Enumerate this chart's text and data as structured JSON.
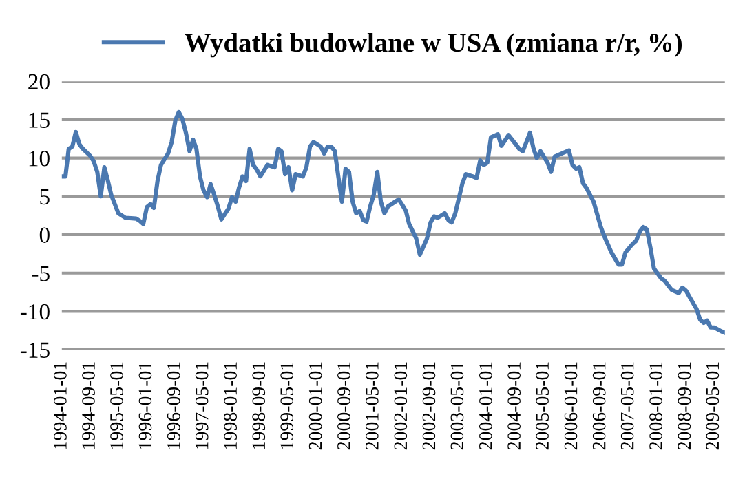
{
  "chart_data": {
    "type": "line",
    "x": [
      "1994-01",
      "1994-02",
      "1994-03",
      "1994-04",
      "1994-05",
      "1994-06",
      "1994-07",
      "1994-09",
      "1994-10",
      "1994-11",
      "1994-12",
      "1995-01",
      "1995-02",
      "1995-03",
      "1995-05",
      "1995-07",
      "1995-10",
      "1995-11",
      "1995-12",
      "1996-01",
      "1996-02",
      "1996-03",
      "1996-04",
      "1996-05",
      "1996-07",
      "1996-08",
      "1996-09",
      "1996-10",
      "1996-11",
      "1996-12",
      "1997-01",
      "1997-02",
      "1997-03",
      "1997-04",
      "1997-05",
      "1997-06",
      "1997-07",
      "1997-08",
      "1997-09",
      "1997-10",
      "1997-12",
      "1998-01",
      "1998-02",
      "1998-03",
      "1998-04",
      "1998-05",
      "1998-06",
      "1998-07",
      "1998-08",
      "1998-09",
      "1998-11",
      "1999-01",
      "1999-02",
      "1999-03",
      "1999-04",
      "1999-05",
      "1999-06",
      "1999-07",
      "1999-09",
      "1999-10",
      "1999-11",
      "1999-12",
      "2000-02",
      "2000-03",
      "2000-04",
      "2000-05",
      "2000-06",
      "2000-07",
      "2000-08",
      "2000-09",
      "2000-10",
      "2000-11",
      "2000-12",
      "2001-01",
      "2001-02",
      "2001-03",
      "2001-04",
      "2001-05",
      "2001-06",
      "2001-07",
      "2001-08",
      "2001-09",
      "2001-11",
      "2001-12",
      "2002-01",
      "2002-02",
      "2002-03",
      "2002-05",
      "2002-06",
      "2002-08",
      "2002-09",
      "2002-10",
      "2002-11",
      "2003-01",
      "2003-02",
      "2003-03",
      "2003-04",
      "2003-06",
      "2003-07",
      "2003-09",
      "2003-10",
      "2003-11",
      "2003-12",
      "2004-01",
      "2004-02",
      "2004-04",
      "2004-05",
      "2004-07",
      "2004-09",
      "2004-10",
      "2004-11",
      "2005-01",
      "2005-02",
      "2005-03",
      "2005-04",
      "2005-06",
      "2005-07",
      "2005-08",
      "2005-10",
      "2005-12",
      "2006-01",
      "2006-02",
      "2006-03",
      "2006-04",
      "2006-05",
      "2006-07",
      "2006-09",
      "2006-10",
      "2006-12",
      "2007-02",
      "2007-03",
      "2007-04",
      "2007-06",
      "2007-07",
      "2007-08",
      "2007-09",
      "2007-10",
      "2007-11",
      "2007-12",
      "2008-02",
      "2008-03",
      "2008-05",
      "2008-07",
      "2008-08",
      "2008-09",
      "2008-10",
      "2008-12",
      "2009-01",
      "2009-02",
      "2009-03",
      "2009-04",
      "2009-05",
      "2009-07",
      "2009-08"
    ],
    "series": [
      {
        "name": "Wydatki budowlane w USA (zmiana r/r, %)",
        "color": "#4a78b0",
        "values": [
          7.6,
          7.6,
          11.2,
          11.5,
          13.4,
          11.8,
          11.2,
          10.3,
          9.6,
          8.2,
          5.0,
          8.8,
          7.0,
          5.2,
          2.8,
          2.2,
          2.1,
          1.8,
          1.4,
          3.6,
          4.0,
          3.5,
          7.0,
          9.1,
          10.6,
          12.1,
          14.9,
          16.0,
          15.1,
          13.3,
          10.9,
          12.4,
          11.2,
          7.6,
          5.8,
          4.9,
          6.6,
          5.2,
          3.7,
          2.0,
          3.4,
          4.9,
          4.3,
          6.1,
          7.6,
          7.0,
          11.2,
          9.1,
          8.5,
          7.6,
          9.1,
          8.8,
          11.2,
          10.9,
          7.9,
          8.8,
          5.8,
          7.9,
          7.6,
          8.8,
          11.5,
          12.1,
          11.5,
          10.6,
          11.5,
          11.5,
          10.9,
          7.6,
          4.3,
          8.6,
          8.2,
          4.3,
          2.8,
          3.1,
          1.9,
          1.7,
          3.7,
          5.2,
          8.2,
          4.3,
          2.8,
          3.7,
          4.3,
          4.6,
          3.9,
          3.1,
          1.4,
          -0.5,
          -2.6,
          -0.5,
          1.6,
          2.4,
          2.2,
          2.8,
          1.9,
          1.6,
          2.8,
          6.7,
          7.9,
          7.6,
          7.4,
          9.7,
          9.1,
          9.4,
          12.7,
          13.1,
          11.6,
          13.0,
          11.8,
          11.2,
          10.9,
          13.3,
          11.2,
          10.0,
          10.9,
          9.4,
          8.2,
          10.2,
          10.6,
          11.0,
          9.1,
          8.6,
          8.8,
          6.7,
          6.1,
          4.3,
          1.0,
          -0.2,
          -2.3,
          -3.9,
          -3.9,
          -2.3,
          -1.2,
          -0.8,
          0.4,
          1.0,
          0.7,
          -1.7,
          -4.4,
          -5.7,
          -6.0,
          -7.2,
          -7.6,
          -6.9,
          -7.3,
          -8.1,
          -9.7,
          -11.1,
          -11.5,
          -11.2,
          -12.1,
          -12.1,
          -12.6,
          -12.8
        ]
      }
    ],
    "xlim": [
      "1994-01",
      "2009-08"
    ],
    "xticks": [
      {
        "value": "1994-01",
        "label": "1994-01-01"
      },
      {
        "value": "1994-09",
        "label": "1994-09-01"
      },
      {
        "value": "1995-05",
        "label": "1995-05-01"
      },
      {
        "value": "1996-01",
        "label": "1996-01-01"
      },
      {
        "value": "1996-09",
        "label": "1996-09-01"
      },
      {
        "value": "1997-05",
        "label": "1997-05-01"
      },
      {
        "value": "1998-01",
        "label": "1998-01-01"
      },
      {
        "value": "1998-09",
        "label": "1998-09-01"
      },
      {
        "value": "1999-05",
        "label": "1999-05-01"
      },
      {
        "value": "2000-01",
        "label": "2000-01-01"
      },
      {
        "value": "2000-09",
        "label": "2000-09-01"
      },
      {
        "value": "2001-05",
        "label": "2001-05-01"
      },
      {
        "value": "2002-01",
        "label": "2002-01-01"
      },
      {
        "value": "2002-09",
        "label": "2002-09-01"
      },
      {
        "value": "2003-05",
        "label": "2003-05-01"
      },
      {
        "value": "2004-01",
        "label": "2004-01-01"
      },
      {
        "value": "2004-09",
        "label": "2004-09-01"
      },
      {
        "value": "2005-05",
        "label": "2005-05-01"
      },
      {
        "value": "2006-01",
        "label": "2006-01-01"
      },
      {
        "value": "2006-09",
        "label": "2006-09-01"
      },
      {
        "value": "2007-05",
        "label": "2007-05-01"
      },
      {
        "value": "2008-01",
        "label": "2008-01-01"
      },
      {
        "value": "2008-09",
        "label": "2008-09-01"
      },
      {
        "value": "2009-05",
        "label": "2009-05-01"
      }
    ],
    "ylim": [
      -15,
      20
    ],
    "yticks": [
      -15,
      -10,
      -5,
      0,
      5,
      10,
      15,
      20
    ],
    "grid": "y",
    "legend": "top",
    "marker": "none",
    "line_style": "solid"
  }
}
